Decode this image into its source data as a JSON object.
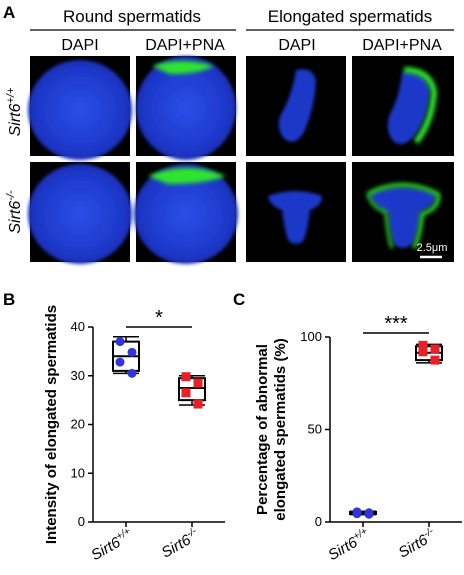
{
  "panel_a": {
    "letter": "A",
    "group_labels": [
      "Round spermatids",
      "Elongated spermatids"
    ],
    "column_labels": [
      "DAPI",
      "DAPI+PNA",
      "DAPI",
      "DAPI+PNA"
    ],
    "rows": [
      {
        "name": "Sirt6",
        "sup": "+/+"
      },
      {
        "name": "Sirt6",
        "sup": "-/-"
      }
    ],
    "scale_bar": "2.5μm",
    "colors": {
      "dapi": "#1b3bd6",
      "pna": "#22dd22",
      "background": "#000000"
    }
  },
  "panel_b": {
    "letter": "B",
    "significance": "*"
  },
  "panel_c": {
    "letter": "C",
    "significance": "***"
  },
  "chart_data": [
    {
      "type": "box",
      "panel": "B",
      "categories": [
        {
          "name": "Sirt6",
          "sup": "+/+"
        },
        {
          "name": "Sirt6",
          "sup": "-/-"
        }
      ],
      "ylabel": "Intensity of elongated spermatids",
      "ylim": [
        0,
        40
      ],
      "yticks": [
        "0",
        "10",
        "20",
        "30",
        "40"
      ],
      "series": [
        {
          "points": [
            37,
            34.8,
            32.8,
            30.5
          ],
          "box": {
            "min": 30.5,
            "q1": 31,
            "median": 34,
            "q3": 37,
            "max": 38
          },
          "color": "#2f35d8",
          "marker": "circle"
        },
        {
          "points": [
            29.8,
            28.5,
            26.5,
            24.2
          ],
          "box": {
            "min": 24,
            "q1": 25,
            "median": 27.5,
            "q3": 29.5,
            "max": 30
          },
          "color": "#e8202a",
          "marker": "square"
        }
      ]
    },
    {
      "type": "box",
      "panel": "C",
      "categories": [
        {
          "name": "Sirt6",
          "sup": "+/+"
        },
        {
          "name": "Sirt6",
          "sup": "-/-"
        }
      ],
      "ylabel": "Percentage of abnormal\nelongated spermatids (%)",
      "ylim": [
        0,
        100
      ],
      "yticks": [
        "0",
        "50",
        "100"
      ],
      "series": [
        {
          "points": [
            4.5,
            5,
            5.5,
            4.2
          ],
          "box": {
            "min": 4,
            "q1": 4.3,
            "median": 4.8,
            "q3": 5.5,
            "max": 5.8
          },
          "color": "#2f35d8",
          "marker": "circle"
        },
        {
          "points": [
            95.5,
            93.5,
            92,
            87.5
          ],
          "box": {
            "min": 86,
            "q1": 87.5,
            "median": 91.5,
            "q3": 95,
            "max": 96
          },
          "color": "#e8202a",
          "marker": "square"
        }
      ]
    }
  ]
}
